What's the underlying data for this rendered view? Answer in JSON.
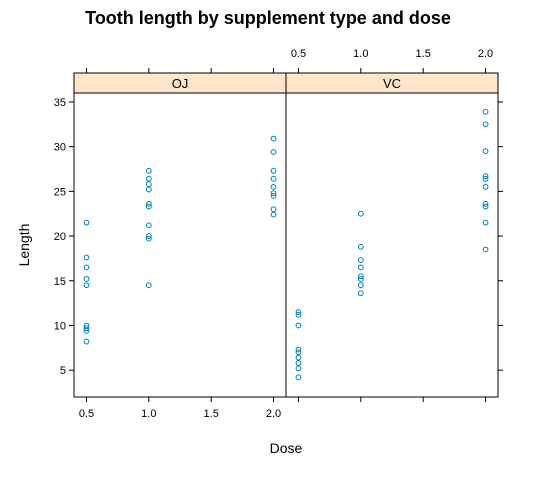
{
  "chart_data": {
    "type": "scatter",
    "title": "Tooth length by supplement type and dose",
    "xlabel": "Dose",
    "ylabel": "Length",
    "xlim": [
      0.4,
      2.1
    ],
    "ylim": [
      2,
      36
    ],
    "x_ticks": [
      "0.5",
      "1.0",
      "1.5",
      "2.0"
    ],
    "y_ticks": [
      "5",
      "10",
      "15",
      "20",
      "25",
      "30",
      "35"
    ],
    "point_color": "#0080C0",
    "strip_color": "#FFE5CC",
    "panels": [
      {
        "name": "OJ",
        "points": [
          {
            "x": 0.5,
            "y": 21.5
          },
          {
            "x": 0.5,
            "y": 17.6
          },
          {
            "x": 0.5,
            "y": 16.5
          },
          {
            "x": 0.5,
            "y": 15.2
          },
          {
            "x": 0.5,
            "y": 14.5
          },
          {
            "x": 0.5,
            "y": 10.0
          },
          {
            "x": 0.5,
            "y": 9.7
          },
          {
            "x": 0.5,
            "y": 9.4
          },
          {
            "x": 0.5,
            "y": 8.2
          },
          {
            "x": 1.0,
            "y": 27.3
          },
          {
            "x": 1.0,
            "y": 26.4
          },
          {
            "x": 1.0,
            "y": 25.8
          },
          {
            "x": 1.0,
            "y": 25.2
          },
          {
            "x": 1.0,
            "y": 23.6
          },
          {
            "x": 1.0,
            "y": 23.3
          },
          {
            "x": 1.0,
            "y": 21.2
          },
          {
            "x": 1.0,
            "y": 20.0
          },
          {
            "x": 1.0,
            "y": 19.7
          },
          {
            "x": 1.0,
            "y": 14.5
          },
          {
            "x": 2.0,
            "y": 30.9
          },
          {
            "x": 2.0,
            "y": 29.4
          },
          {
            "x": 2.0,
            "y": 27.3
          },
          {
            "x": 2.0,
            "y": 26.4
          },
          {
            "x": 2.0,
            "y": 25.5
          },
          {
            "x": 2.0,
            "y": 24.8
          },
          {
            "x": 2.0,
            "y": 24.5
          },
          {
            "x": 2.0,
            "y": 23.0
          },
          {
            "x": 2.0,
            "y": 22.4
          }
        ]
      },
      {
        "name": "VC",
        "points": [
          {
            "x": 0.5,
            "y": 11.5
          },
          {
            "x": 0.5,
            "y": 11.2
          },
          {
            "x": 0.5,
            "y": 10.0
          },
          {
            "x": 0.5,
            "y": 7.3
          },
          {
            "x": 0.5,
            "y": 7.0
          },
          {
            "x": 0.5,
            "y": 6.4
          },
          {
            "x": 0.5,
            "y": 5.8
          },
          {
            "x": 0.5,
            "y": 5.2
          },
          {
            "x": 0.5,
            "y": 4.2
          },
          {
            "x": 1.0,
            "y": 22.5
          },
          {
            "x": 1.0,
            "y": 18.8
          },
          {
            "x": 1.0,
            "y": 17.3
          },
          {
            "x": 1.0,
            "y": 16.5
          },
          {
            "x": 1.0,
            "y": 15.5
          },
          {
            "x": 1.0,
            "y": 15.2
          },
          {
            "x": 1.0,
            "y": 14.5
          },
          {
            "x": 1.0,
            "y": 13.6
          },
          {
            "x": 2.0,
            "y": 33.9
          },
          {
            "x": 2.0,
            "y": 32.5
          },
          {
            "x": 2.0,
            "y": 29.5
          },
          {
            "x": 2.0,
            "y": 26.7
          },
          {
            "x": 2.0,
            "y": 26.4
          },
          {
            "x": 2.0,
            "y": 25.5
          },
          {
            "x": 2.0,
            "y": 23.6
          },
          {
            "x": 2.0,
            "y": 23.3
          },
          {
            "x": 2.0,
            "y": 21.5
          },
          {
            "x": 2.0,
            "y": 18.5
          }
        ]
      }
    ]
  }
}
